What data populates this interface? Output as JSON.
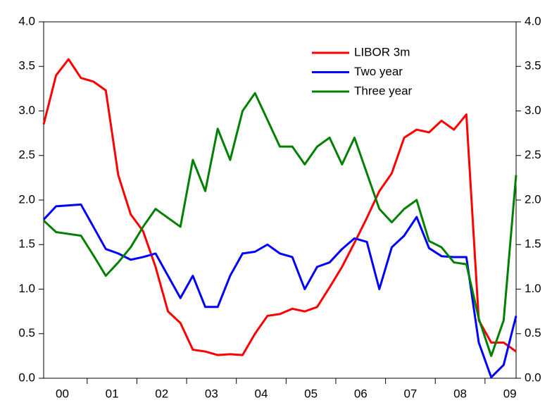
{
  "chart_data": {
    "type": "line",
    "x": [
      0.125,
      0.375,
      0.625,
      0.875,
      1.125,
      1.375,
      1.625,
      1.875,
      2.125,
      2.375,
      2.625,
      2.875,
      3.125,
      3.375,
      3.625,
      3.875,
      4.125,
      4.375,
      4.625,
      4.875,
      5.125,
      5.375,
      5.625,
      5.875,
      6.125,
      6.375,
      6.625,
      6.875,
      7.125,
      7.375,
      7.625,
      7.875,
      8.125,
      8.375,
      8.625,
      8.875,
      9.125,
      9.375,
      9.625
    ],
    "xlim": [
      0.125,
      9.625
    ],
    "xticks": [
      {
        "value": 0.5,
        "label": "00"
      },
      {
        "value": 1.5,
        "label": "01"
      },
      {
        "value": 2.5,
        "label": "02"
      },
      {
        "value": 3.5,
        "label": "03"
      },
      {
        "value": 4.5,
        "label": "04"
      },
      {
        "value": 5.5,
        "label": "05"
      },
      {
        "value": 6.5,
        "label": "06"
      },
      {
        "value": 7.5,
        "label": "07"
      },
      {
        "value": 8.5,
        "label": "08"
      },
      {
        "value": 9.5,
        "label": "09"
      }
    ],
    "ylim": [
      0,
      4
    ],
    "yticks": [
      {
        "value": 0,
        "label": "0.0"
      },
      {
        "value": 0.5,
        "label": "0.5"
      },
      {
        "value": 1,
        "label": "1.0"
      },
      {
        "value": 1.5,
        "label": "1.5"
      },
      {
        "value": 2,
        "label": "2.0"
      },
      {
        "value": 2.5,
        "label": "2.5"
      },
      {
        "value": 3,
        "label": "3.0"
      },
      {
        "value": 3.5,
        "label": "3.5"
      },
      {
        "value": 4,
        "label": "4.0"
      }
    ],
    "y2lim": [
      0,
      4
    ],
    "y2ticks": [
      {
        "value": 0,
        "label": "0.0"
      },
      {
        "value": 0.5,
        "label": "0.5"
      },
      {
        "value": 1,
        "label": "1.0"
      },
      {
        "value": 1.5,
        "label": "1.5"
      },
      {
        "value": 2,
        "label": "2.0"
      },
      {
        "value": 2.5,
        "label": "2.5"
      },
      {
        "value": 3,
        "label": "3.0"
      },
      {
        "value": 3.5,
        "label": "3.5"
      },
      {
        "value": 4,
        "label": "4.0"
      }
    ],
    "grid": false,
    "legend": "upper right",
    "series": [
      {
        "name": "LIBOR 3m",
        "color": "#ff0000",
        "values": [
          2.85,
          3.4,
          3.58,
          3.37,
          3.33,
          3.23,
          2.28,
          1.84,
          1.65,
          1.25,
          0.75,
          0.62,
          0.32,
          0.3,
          0.26,
          0.27,
          0.26,
          0.5,
          0.7,
          0.72,
          0.78,
          0.75,
          0.8,
          1.02,
          1.25,
          1.52,
          1.8,
          2.1,
          2.3,
          2.7,
          2.79,
          2.76,
          2.89,
          2.79,
          2.96,
          0.65,
          0.4,
          0.4,
          0.3
        ]
      },
      {
        "name": "Two year",
        "color": "#0000ff",
        "values": [
          1.78,
          1.93,
          1.94,
          1.95,
          1.7,
          1.45,
          1.4,
          1.33,
          1.36,
          1.4,
          1.15,
          0.9,
          1.15,
          0.8,
          0.8,
          1.15,
          1.4,
          1.42,
          1.5,
          1.4,
          1.36,
          1.0,
          1.25,
          1.3,
          1.45,
          1.57,
          1.53,
          1.0,
          1.47,
          1.6,
          1.81,
          1.46,
          1.37,
          1.36,
          1.36,
          0.4,
          0.01,
          0.15,
          0.7
        ]
      },
      {
        "name": "Three year",
        "color": "#008000",
        "values": [
          1.77,
          1.64,
          1.62,
          1.6,
          1.38,
          1.15,
          1.3,
          1.47,
          1.7,
          1.9,
          1.8,
          1.7,
          2.45,
          2.1,
          2.8,
          2.45,
          3.0,
          3.2,
          2.9,
          2.6,
          2.6,
          2.4,
          2.6,
          2.7,
          2.4,
          2.7,
          2.3,
          1.9,
          1.75,
          1.9,
          2.0,
          1.54,
          1.47,
          1.3,
          1.28,
          0.67,
          0.25,
          0.65,
          2.28
        ]
      }
    ]
  }
}
